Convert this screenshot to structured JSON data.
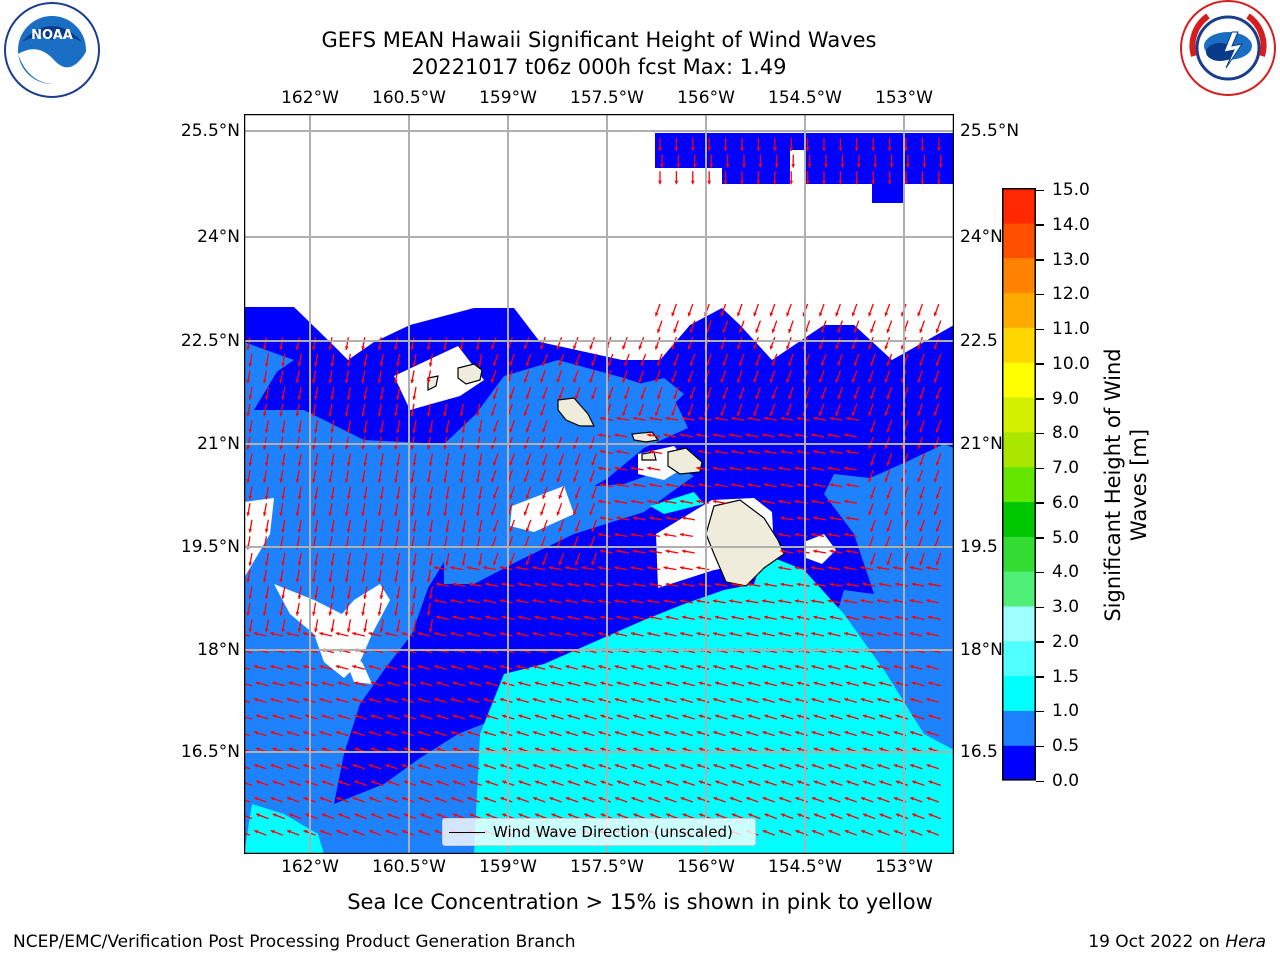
{
  "header": {
    "title_line1": "GEFS MEAN Hawaii Significant Height of Wind Waves",
    "title_line2": "20221017 t06z 000h fcst   Max: 1.49"
  },
  "logos": {
    "left": "NOAA",
    "right": "NATIONAL WEATHER SERVICE",
    "noaa_ring_text": "NATIONAL OCEANIC AND ATMOSPHERIC ADMINISTRATION · U.S. DEPARTMENT OF COMMERCE"
  },
  "map": {
    "lon_labels": [
      "162°W",
      "160.5°W",
      "159°W",
      "157.5°W",
      "156°W",
      "154.5°W",
      "153°W"
    ],
    "lat_labels_left": [
      "25.5°N",
      "24°N",
      "22.5°N",
      "21°N",
      "19.5°N",
      "18°N",
      "16.5°N"
    ],
    "lat_labels_right": [
      "25.5°N",
      "24°N",
      "22.5",
      "21°N",
      "19.5",
      "18°N",
      "16.5"
    ],
    "legend_label": "Wind Wave Direction (unscaled)"
  },
  "colorbar": {
    "title": "Significant Height of Wind Waves [m]",
    "ticks": [
      "15.0",
      "14.0",
      "13.0",
      "12.0",
      "11.0",
      "10.0",
      "9.0",
      "8.0",
      "7.0",
      "6.0",
      "5.0",
      "4.0",
      "3.0",
      "2.0",
      "1.5",
      "1.0",
      "0.5",
      "0.0"
    ],
    "colors": [
      "#0000ff",
      "#1e82ff",
      "#00ffff",
      "#50ffff",
      "#a0ffff",
      "#50f078",
      "#32dc32",
      "#00c800",
      "#64e600",
      "#aae600",
      "#d2f000",
      "#ffff00",
      "#ffd700",
      "#ffaa00",
      "#ff8200",
      "#ff5000",
      "#ff2800"
    ]
  },
  "notes": {
    "sea_ice": "Sea Ice Concentration > 15% is shown in pink to yellow",
    "branch": "NCEP/EMC/Verification Post Processing Product Generation Branch",
    "date": "19 Oct 2022 on ",
    "host": "Hera"
  }
}
